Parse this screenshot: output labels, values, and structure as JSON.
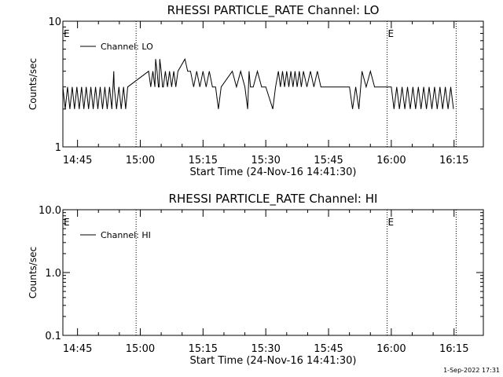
{
  "footer": {
    "timestamp": "1-Sep-2022 17:31"
  },
  "chart_data": [
    {
      "type": "line",
      "title": "RHESSI PARTICLE_RATE Channel: LO",
      "xlabel": "Start Time (24-Nov-16 14:41:30)",
      "ylabel": "Counts/sec",
      "yscale": "log",
      "ylim": [
        1,
        10
      ],
      "y_ticks": [
        "1",
        "10"
      ],
      "xlim": [
        "14:41:30",
        "16:22:00"
      ],
      "x_ticks": [
        "14:45",
        "15:00",
        "15:15",
        "15:30",
        "15:45",
        "16:00",
        "16:15"
      ],
      "legend": {
        "label": "Channel: LO",
        "placement": "top-left"
      },
      "event_markers": [
        {
          "time": "14:41:30",
          "label": "E",
          "line": false
        },
        {
          "time": "14:59:00",
          "label": "",
          "line": true
        },
        {
          "time": "15:59:00",
          "label": "E",
          "line": true
        },
        {
          "time": "16:15:30",
          "label": "",
          "line": true
        }
      ],
      "series": [
        {
          "name": "Channel: LO",
          "segments": [
            {
              "start": "14:41:30",
              "end": "14:56:00",
              "low": 2,
              "high": 3,
              "toggles": 26,
              "spikes": [
                {
                  "time": "14:54:00",
                  "value": 4
                }
              ]
            },
            {
              "start": "14:56:00",
              "end": "14:57:00",
              "low": 2,
              "high": 3,
              "toggles": 2
            },
            {
              "start": "14:57:00",
              "end": "15:02:00",
              "low": 3,
              "high": 3,
              "toggles": 0
            },
            {
              "start": "15:02:00",
              "end": "15:09:00",
              "low": 3,
              "high": 4,
              "toggles": 14,
              "spikes": [
                {
                  "time": "15:04:00",
                  "value": 5
                },
                {
                  "time": "15:05:00",
                  "value": 5
                }
              ]
            },
            {
              "start": "15:09:00",
              "end": "15:12:00",
              "low": 4,
              "high": 4,
              "toggles": 0,
              "spikes": [
                {
                  "time": "15:11:00",
                  "value": 5
                }
              ]
            },
            {
              "start": "15:12:00",
              "end": "15:18:00",
              "low": 3,
              "high": 4,
              "toggles": 8
            },
            {
              "start": "15:18:00",
              "end": "15:22:00",
              "low": 3,
              "high": 3,
              "toggles": 0,
              "dips": [
                {
                  "time": "15:19:00",
                  "value": 2
                }
              ]
            },
            {
              "start": "15:22:00",
              "end": "15:30:00",
              "low": 3,
              "high": 4,
              "toggles": 8,
              "dips": [
                {
                  "time": "15:26:00",
                  "value": 2
                }
              ]
            },
            {
              "start": "15:30:00",
              "end": "15:33:00",
              "low": 3,
              "high": 3,
              "toggles": 0,
              "dips": [
                {
                  "time": "15:32:00",
                  "value": 2
                }
              ]
            },
            {
              "start": "15:33:00",
              "end": "15:39:00",
              "low": 3,
              "high": 4,
              "toggles": 12
            },
            {
              "start": "15:39:00",
              "end": "15:44:00",
              "low": 3,
              "high": 4,
              "toggles": 6
            },
            {
              "start": "15:44:00",
              "end": "15:50:00",
              "low": 3,
              "high": 3,
              "toggles": 0
            },
            {
              "start": "15:50:00",
              "end": "15:53:00",
              "low": 2,
              "high": 3,
              "toggles": 4
            },
            {
              "start": "15:53:00",
              "end": "15:57:00",
              "low": 3,
              "high": 4,
              "toggles": 4
            },
            {
              "start": "15:57:00",
              "end": "16:00:00",
              "low": 3,
              "high": 3,
              "toggles": 0
            },
            {
              "start": "16:00:00",
              "end": "16:15:30",
              "low": 2,
              "high": 3,
              "toggles": 24
            }
          ]
        }
      ]
    },
    {
      "type": "line",
      "title": "RHESSI PARTICLE_RATE Channel: HI",
      "xlabel": "Start Time (24-Nov-16 14:41:30)",
      "ylabel": "Counts/sec",
      "yscale": "log",
      "ylim": [
        0.1,
        10
      ],
      "y_ticks": [
        "0.1",
        "1.0",
        "10.0"
      ],
      "xlim": [
        "14:41:30",
        "16:22:00"
      ],
      "x_ticks": [
        "14:45",
        "15:00",
        "15:15",
        "15:30",
        "15:45",
        "16:00",
        "16:15"
      ],
      "legend": {
        "label": "Channel: HI",
        "placement": "top-left"
      },
      "event_markers": [
        {
          "time": "14:41:30",
          "label": "E",
          "line": false
        },
        {
          "time": "14:59:00",
          "label": "",
          "line": true
        },
        {
          "time": "15:59:00",
          "label": "E",
          "line": true
        },
        {
          "time": "16:15:30",
          "label": "",
          "line": true
        }
      ],
      "series": [
        {
          "name": "Channel: HI",
          "segments": []
        }
      ]
    }
  ]
}
